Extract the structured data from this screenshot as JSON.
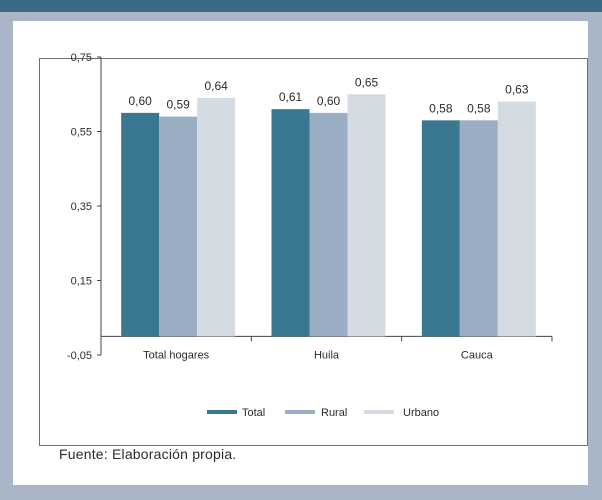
{
  "source_note": "Fuente: Elaboración propia.",
  "colors": {
    "Total": "#3a7891",
    "Rural": "#9badc2",
    "Urbano": "#d4dbe3",
    "background": "#a9b6c8",
    "band": "#3a6a87"
  },
  "chart_data": {
    "type": "bar",
    "categories": [
      "Total hogares",
      "Huila",
      "Cauca"
    ],
    "series": [
      {
        "name": "Total",
        "values": [
          0.6,
          0.61,
          0.58
        ],
        "labels": [
          "0,60",
          "0,61",
          "0,58"
        ]
      },
      {
        "name": "Rural",
        "values": [
          0.59,
          0.6,
          0.58
        ],
        "labels": [
          "0,59",
          "0,60",
          "0,58"
        ]
      },
      {
        "name": "Urbano",
        "values": [
          0.64,
          0.65,
          0.63
        ],
        "labels": [
          "0,64",
          "0,65",
          "0,63"
        ]
      }
    ],
    "title": "",
    "xlabel": "",
    "ylabel": "",
    "ylim": [
      -0.05,
      0.75
    ],
    "yticks": [
      -0.05,
      0.15,
      0.35,
      0.55,
      0.75
    ],
    "ytick_labels": [
      "-0,05",
      "0,15",
      "0,35",
      "0,55",
      "0,75"
    ],
    "baseline": 0,
    "grid": false,
    "legend_position": "bottom"
  }
}
